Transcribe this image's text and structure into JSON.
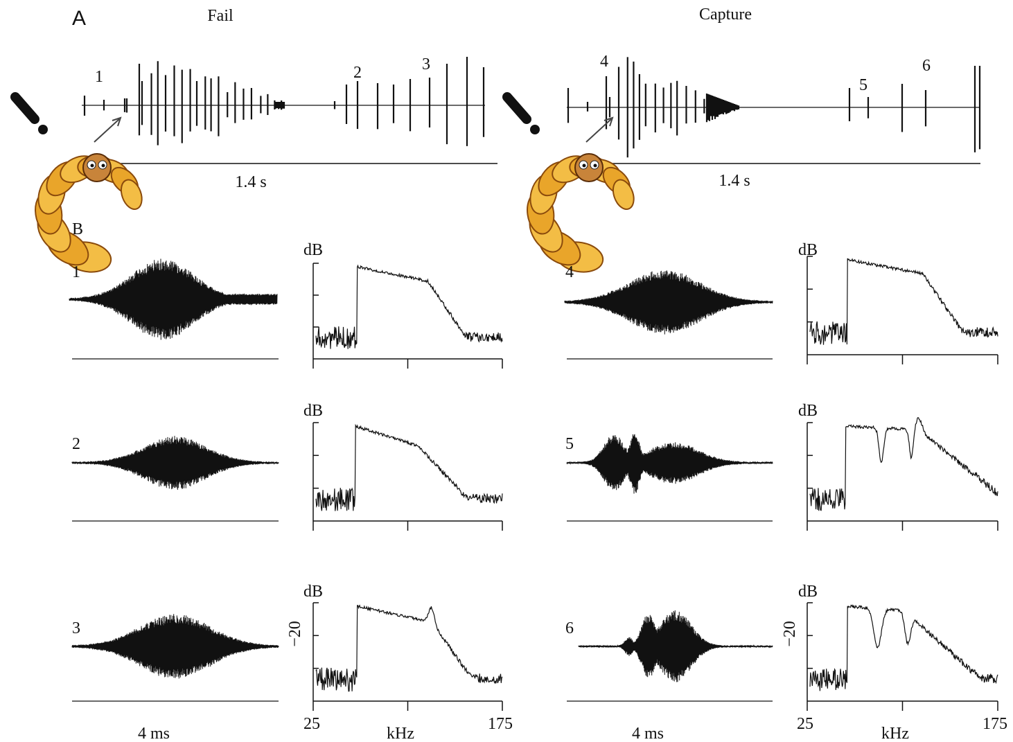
{
  "panel_a": {
    "label": "A",
    "fail": {
      "title": "Fail",
      "scale": "1.4 s",
      "call_labels": [
        "1",
        "2",
        "3"
      ]
    },
    "capture": {
      "title": "Capture",
      "scale": "1.4 s",
      "call_labels": [
        "4",
        "5",
        "6"
      ]
    }
  },
  "panel_b": {
    "label": "B",
    "fail_calls": [
      "1",
      "2",
      "3"
    ],
    "capture_calls": [
      "4",
      "5",
      "6"
    ],
    "spectrum_ylabel": "dB",
    "y_tick": "−20",
    "time_scale": "4 ms",
    "x_label": "kHz",
    "x_min": "25",
    "x_max": "175"
  }
}
